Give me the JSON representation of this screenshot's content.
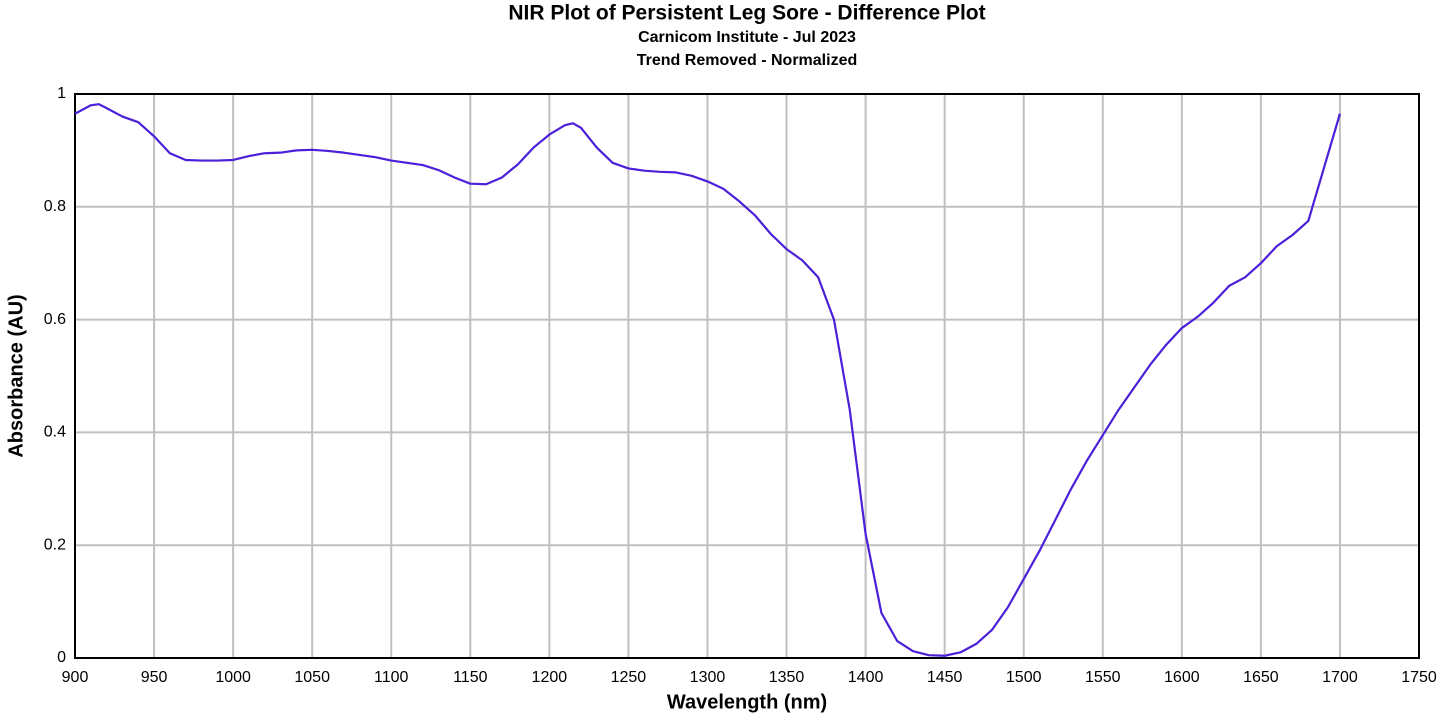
{
  "chart_data": {
    "type": "line",
    "title": "NIR Plot of Persistent Leg Sore - Difference Plot",
    "subtitle": [
      "Carnicom Institute - Jul 2023",
      "Trend Removed - Normalized"
    ],
    "x_label": "Wavelength (nm)",
    "y_label": "Absorbance (AU)",
    "x": [
      900,
      910,
      915,
      920,
      930,
      940,
      950,
      960,
      970,
      980,
      990,
      1000,
      1010,
      1020,
      1030,
      1040,
      1050,
      1060,
      1070,
      1080,
      1090,
      1100,
      1110,
      1120,
      1130,
      1140,
      1150,
      1160,
      1170,
      1180,
      1190,
      1200,
      1210,
      1215,
      1220,
      1230,
      1240,
      1250,
      1260,
      1270,
      1280,
      1290,
      1300,
      1310,
      1320,
      1330,
      1340,
      1350,
      1360,
      1370,
      1380,
      1390,
      1400,
      1410,
      1420,
      1430,
      1440,
      1450,
      1460,
      1470,
      1480,
      1490,
      1500,
      1510,
      1520,
      1530,
      1540,
      1550,
      1560,
      1570,
      1580,
      1590,
      1600,
      1610,
      1620,
      1630,
      1640,
      1650,
      1660,
      1670,
      1680,
      1690,
      1700
    ],
    "series": [
      {
        "name": "Absorbance",
        "color": "#4b20d8",
        "values": [
          0.965,
          0.98,
          0.982,
          0.975,
          0.96,
          0.95,
          0.925,
          0.895,
          0.883,
          0.882,
          0.882,
          0.883,
          0.89,
          0.895,
          0.896,
          0.9,
          0.901,
          0.899,
          0.896,
          0.892,
          0.888,
          0.882,
          0.878,
          0.874,
          0.865,
          0.852,
          0.841,
          0.84,
          0.852,
          0.875,
          0.905,
          0.928,
          0.945,
          0.948,
          0.94,
          0.905,
          0.878,
          0.868,
          0.864,
          0.862,
          0.861,
          0.855,
          0.845,
          0.832,
          0.81,
          0.785,
          0.752,
          0.725,
          0.705,
          0.675,
          0.6,
          0.44,
          0.22,
          0.08,
          0.03,
          0.012,
          0.005,
          0.004,
          0.01,
          0.025,
          0.05,
          0.09,
          0.14,
          0.19,
          0.245,
          0.3,
          0.35,
          0.395,
          0.44,
          0.48,
          0.52,
          0.555,
          0.585,
          0.605,
          0.63,
          0.66,
          0.675,
          0.7,
          0.73,
          0.75,
          0.775,
          0.87,
          0.965
        ]
      }
    ],
    "xlim": [
      900,
      1750
    ],
    "xticks": [
      900,
      950,
      1000,
      1050,
      1100,
      1150,
      1200,
      1250,
      1300,
      1350,
      1400,
      1450,
      1500,
      1550,
      1600,
      1650,
      1700,
      1750
    ],
    "ylim": [
      0,
      1
    ],
    "yticks": [
      0,
      0.2,
      0.4,
      0.6,
      0.8,
      1
    ],
    "grid": true
  }
}
